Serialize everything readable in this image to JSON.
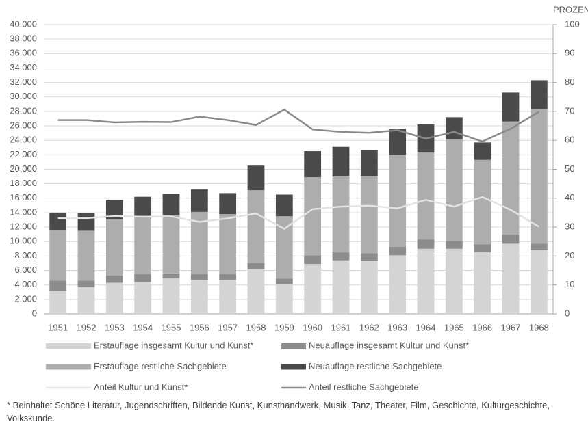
{
  "chart_data": {
    "type": "bar",
    "stacked": true,
    "categories": [
      "1951",
      "1952",
      "1953",
      "1954",
      "1955",
      "1956",
      "1957",
      "1958",
      "1959",
      "1960",
      "1961",
      "1962",
      "1963",
      "1964",
      "1965",
      "1966",
      "1967",
      "1968"
    ],
    "series": [
      {
        "name": "Erstauflage insgesamt Kultur und Kunst*",
        "color": "#d4d4d4",
        "values": [
          3200,
          3700,
          4300,
          4400,
          4900,
          4700,
          4700,
          6200,
          4100,
          6900,
          7400,
          7300,
          8100,
          9000,
          9000,
          8500,
          9700,
          8800
        ]
      },
      {
        "name": "Neuauflage insgesamt Kultur und Kunst*",
        "color": "#8c8c8c",
        "values": [
          1400,
          900,
          1000,
          1100,
          700,
          800,
          800,
          800,
          800,
          1200,
          1100,
          1100,
          1200,
          1300,
          1100,
          1100,
          1300,
          900
        ]
      },
      {
        "name": "Erstauflage restliche Sachgebiete",
        "color": "#adadad",
        "values": [
          7000,
          6900,
          7800,
          8000,
          8100,
          8600,
          8300,
          10100,
          8600,
          10800,
          10500,
          10600,
          12700,
          12000,
          14000,
          11700,
          15600,
          18600
        ]
      },
      {
        "name": "Neuauflage restliche Sachgebiete",
        "color": "#4a4a4a",
        "values": [
          2400,
          2400,
          2600,
          2700,
          2900,
          3100,
          2900,
          3400,
          3000,
          3600,
          4100,
          3600,
          3600,
          3900,
          3100,
          2400,
          4000,
          4000
        ]
      },
      {
        "name": "Anteil Kultur und Kunst*",
        "color": "#e3e3e3",
        "type": "line",
        "axis": "y2",
        "values": [
          33.1,
          33.1,
          33.8,
          33.6,
          33.7,
          31.8,
          33,
          34.7,
          29.4,
          36.2,
          37.1,
          37.4,
          36.5,
          39.4,
          37.1,
          40.4,
          36,
          30.1
        ]
      },
      {
        "name": "Anteil restliche Sachgebiete",
        "color": "#8a8a8a",
        "type": "line",
        "axis": "y2",
        "values": [
          67,
          67,
          66.2,
          66.4,
          66.3,
          68.2,
          67,
          65.3,
          70.6,
          63.8,
          62.9,
          62.6,
          63.5,
          60.6,
          62.9,
          59.6,
          64,
          69.9
        ]
      }
    ],
    "ylim": [
      0,
      40000
    ],
    "yticks": [
      0,
      {
        "value": 2000,
        "label": "2.000"
      },
      {
        "value": 4000,
        "label": "4.000"
      },
      {
        "value": 6000,
        "label": "6.000"
      },
      {
        "value": 8000,
        "label": "8.000"
      },
      {
        "value": 10000,
        "label": "10.000"
      },
      {
        "value": 12000,
        "label": "12.000"
      },
      {
        "value": 14000,
        "label": "14.000"
      },
      {
        "value": 16000,
        "label": "16.000"
      },
      {
        "value": 18000,
        "label": "18.000"
      },
      {
        "value": 20000,
        "label": "20.000"
      },
      {
        "value": 22000,
        "label": "22.000"
      },
      {
        "value": 24000,
        "label": "24.000"
      },
      {
        "value": 26000,
        "label": "26.000"
      },
      {
        "value": 28000,
        "label": "28.000"
      },
      {
        "value": 30000,
        "label": "30.000"
      },
      {
        "value": 32000,
        "label": "32.000"
      },
      {
        "value": 34000,
        "label": "34.000"
      },
      {
        "value": 36000,
        "label": "36.000"
      },
      {
        "value": 38000,
        "label": "38.000"
      },
      {
        "value": 40000,
        "label": "40.000"
      }
    ],
    "y2label": "PROZENT",
    "y2lim": [
      0,
      100
    ],
    "y2ticks": [
      0,
      10,
      20,
      30,
      40,
      50,
      60,
      70,
      80,
      90,
      100
    ],
    "grid": true,
    "legend": "bottom",
    "footnote": "* Beinhaltet Schöne Literatur, Jugendschriften, Bildende Kunst, Kunsthandwerk, Musik, Tanz, Theater, Film, Geschichte, Kulturgeschichte, Volkskunde."
  }
}
